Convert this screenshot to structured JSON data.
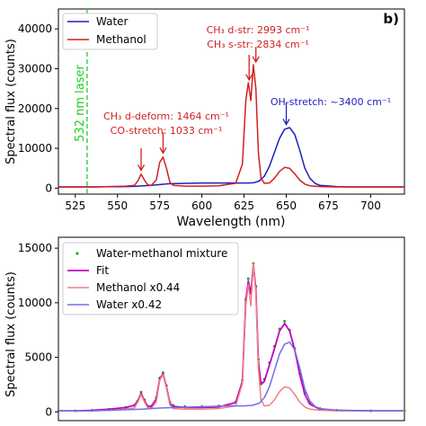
{
  "chart_data": [
    {
      "type": "line",
      "panel_label": "b)",
      "xlabel": "Wavelength (nm)",
      "ylabel": "Spectral flux (counts)",
      "xlim": [
        515,
        720
      ],
      "ylim": [
        -1500,
        45000
      ],
      "xticks": [
        525,
        550,
        575,
        600,
        625,
        650,
        675,
        700
      ],
      "yticks": [
        0,
        10000,
        20000,
        30000,
        40000
      ],
      "legend_position": "top-left",
      "series": [
        {
          "name": "Water",
          "color": "#1f1fbf",
          "x": [
            515,
            525,
            535,
            545,
            555,
            560,
            565,
            570,
            575,
            580,
            590,
            600,
            610,
            620,
            625,
            628,
            631,
            634,
            637,
            640,
            643,
            646,
            649,
            652,
            655,
            658,
            661,
            664,
            667,
            670,
            680,
            690,
            700,
            710,
            720
          ],
          "y": [
            300,
            300,
            300,
            350,
            400,
            450,
            600,
            700,
            900,
            1100,
            1200,
            1300,
            1300,
            1300,
            1300,
            1300,
            1400,
            1800,
            3000,
            5500,
            9000,
            12500,
            14800,
            15200,
            13500,
            9500,
            5000,
            2500,
            1200,
            700,
            400,
            300,
            300,
            300,
            300
          ]
        },
        {
          "name": "Methanol",
          "color": "#d02020",
          "x": [
            515,
            525,
            535,
            545,
            555,
            560,
            562,
            564,
            566,
            568,
            570,
            573,
            575,
            577,
            579,
            581,
            583,
            590,
            600,
            610,
            620,
            624,
            626,
            627.5,
            629,
            630.5,
            632,
            633.5,
            635,
            637,
            640,
            643,
            646,
            649,
            652,
            655,
            658,
            661,
            664,
            670,
            680,
            700,
            720
          ],
          "y": [
            300,
            300,
            300,
            400,
            500,
            700,
            1800,
            3500,
            2000,
            800,
            700,
            2000,
            6500,
            7800,
            5000,
            1500,
            700,
            500,
            500,
            600,
            1200,
            6000,
            22000,
            26500,
            22000,
            31000,
            25000,
            9000,
            2500,
            1200,
            1300,
            2500,
            4200,
            5200,
            5000,
            3600,
            2000,
            1000,
            600,
            400,
            300,
            300,
            300
          ]
        }
      ],
      "reference_line": {
        "x": 532,
        "label": "532 nm laser",
        "color": "#22cc22"
      },
      "annotations": [
        {
          "text": "CH₃ d-str: 2993 cm⁻¹",
          "color": "#d02020",
          "x": 628,
          "y": 27000
        },
        {
          "text": "CH₃ s-str: 2834 cm⁻¹",
          "color": "#d02020",
          "x": 632,
          "y": 31500
        },
        {
          "text": "CH₃ d-deform: 1464 cm⁻¹",
          "color": "#d02020",
          "x": 564,
          "y": 4200
        },
        {
          "text": "CO-stretch: 1033 cm⁻¹",
          "color": "#d02020",
          "x": 577,
          "y": 8500
        },
        {
          "text": "OH-stretch: ~3400 cm⁻¹",
          "color": "#1f1fbf",
          "x": 650,
          "y": 16000
        }
      ]
    },
    {
      "type": "line",
      "xlabel": "",
      "ylabel": "Spectral flux (counts)",
      "xlim": [
        515,
        720
      ],
      "ylim": [
        -800,
        16000
      ],
      "yticks": [
        0,
        5000,
        10000,
        15000
      ],
      "legend_position": "top-left",
      "series": [
        {
          "name": "Water-methanol mixture",
          "style": "points",
          "color": "#2ca02c",
          "x": [
            515,
            525,
            535,
            545,
            555,
            560,
            562,
            564,
            566,
            568,
            570,
            573,
            575,
            577,
            579,
            581,
            583,
            590,
            600,
            610,
            620,
            624,
            626,
            627.5,
            629,
            630.5,
            632,
            633.5,
            635,
            637,
            640,
            643,
            646,
            649,
            652,
            655,
            658,
            661,
            664,
            670,
            680,
            700,
            720
          ],
          "y": [
            100,
            100,
            150,
            250,
            400,
            600,
            1000,
            1800,
            1100,
            500,
            500,
            1300,
            3100,
            3600,
            2400,
            900,
            600,
            500,
            500,
            550,
            900,
            2900,
            10300,
            12200,
            11000,
            13600,
            11500,
            4800,
            2700,
            3000,
            4500,
            6000,
            7600,
            8300,
            7500,
            5800,
            3500,
            1700,
            800,
            300,
            150,
            100,
            100
          ]
        },
        {
          "name": "Fit",
          "color": "#c000c0",
          "x": [
            515,
            525,
            535,
            545,
            555,
            560,
            562,
            564,
            566,
            568,
            570,
            573,
            575,
            577,
            579,
            581,
            583,
            590,
            600,
            610,
            620,
            624,
            626,
            627.5,
            629,
            630.5,
            632,
            633.5,
            635,
            637,
            640,
            643,
            646,
            649,
            652,
            655,
            658,
            661,
            664,
            670,
            680,
            700,
            720
          ],
          "y": [
            100,
            100,
            150,
            250,
            400,
            600,
            1000,
            1700,
            1000,
            500,
            500,
            1200,
            3000,
            3500,
            2300,
            800,
            500,
            400,
            400,
            450,
            850,
            2800,
            10200,
            12000,
            10800,
            13500,
            11300,
            4600,
            2500,
            2800,
            4300,
            5800,
            7400,
            8100,
            7400,
            5700,
            3400,
            1600,
            700,
            250,
            150,
            100,
            100
          ]
        },
        {
          "name": "Methanol x0.44",
          "color": "#f08080",
          "x": [
            515,
            525,
            535,
            545,
            555,
            560,
            562,
            564,
            566,
            568,
            570,
            573,
            575,
            577,
            579,
            581,
            583,
            590,
            600,
            610,
            620,
            624,
            626,
            627.5,
            629,
            630.5,
            632,
            633.5,
            635,
            637,
            640,
            643,
            646,
            649,
            652,
            655,
            658,
            661,
            664,
            670,
            680,
            700,
            720
          ],
          "y": [
            100,
            100,
            100,
            150,
            250,
            350,
            900,
            1600,
            900,
            350,
            300,
            900,
            2900,
            3400,
            2200,
            650,
            300,
            250,
            250,
            300,
            550,
            2600,
            9700,
            11700,
            9700,
            13600,
            11000,
            4000,
            1100,
            550,
            600,
            1100,
            1850,
            2300,
            2200,
            1600,
            900,
            450,
            250,
            150,
            100,
            100,
            100
          ]
        },
        {
          "name": "Water x0.42",
          "color": "#7070e8",
          "x": [
            515,
            525,
            535,
            545,
            555,
            565,
            575,
            585,
            595,
            605,
            615,
            625,
            630,
            634,
            637,
            640,
            643,
            646,
            649,
            652,
            655,
            658,
            661,
            664,
            667,
            670,
            680,
            700,
            720
          ],
          "y": [
            100,
            100,
            100,
            150,
            200,
            250,
            350,
            400,
            450,
            500,
            550,
            550,
            600,
            800,
            1300,
            2300,
            3800,
            5300,
            6200,
            6400,
            5700,
            4000,
            2100,
            1000,
            500,
            300,
            150,
            100,
            100
          ]
        }
      ]
    }
  ]
}
